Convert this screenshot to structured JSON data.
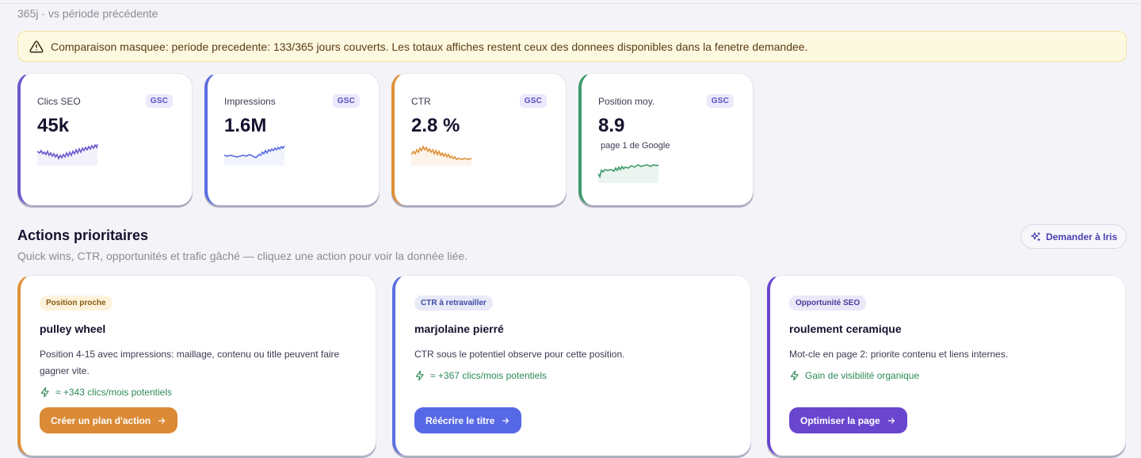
{
  "header": {
    "period": "365j · vs période précédente"
  },
  "alert": {
    "icon": "warning-triangle-icon",
    "text": "Comparaison masquee: periode precedente: 133/365 jours couverts. Les totaux affiches restent ceux des donnees disponibles dans la fenetre demandee."
  },
  "kpis": [
    {
      "label": "Clics SEO",
      "badge": "GSC",
      "value": "45k",
      "color": "#6a5acd"
    },
    {
      "label": "Impressions",
      "badge": "GSC",
      "value": "1.6M",
      "color": "#5b6ee1"
    },
    {
      "label": "CTR",
      "badge": "GSC",
      "value": "2.8 %",
      "color": "#e0913a"
    },
    {
      "label": "Position moy.",
      "badge": "GSC",
      "value": "8.9",
      "sub": "page 1 de Google",
      "color": "#3f9b6b"
    }
  ],
  "actions_section": {
    "title": "Actions prioritaires",
    "subtitle": "Quick wins, CTR, opportunités et trafic gâché — cliquez une action pour voir la donnée liée.",
    "iris_button": "Demander à Iris"
  },
  "actions": [
    {
      "tag": "Position proche",
      "title": "pulley wheel",
      "description": "Position 4-15 avec impressions: maillage, contenu ou title peuvent faire gagner vite.",
      "gain": "≈ +343 clics/mois potentiels",
      "cta": "Créer un plan d'action",
      "color": "#e0913a"
    },
    {
      "tag": "CTR à retravailler",
      "title": "marjolaine pierré",
      "description": "CTR sous le potentiel observe pour cette position.",
      "gain": "≈ +367 clics/mois potentiels",
      "cta": "Réécrire le titre",
      "color": "#5b6ee1"
    },
    {
      "tag": "Opportunité SEO",
      "title": "roulement ceramique",
      "description": "Mot-cle en page 2: priorite contenu et liens internes.",
      "gain": "Gain de visibilité organique",
      "cta": "Optimiser la page",
      "color": "#6a46cf"
    }
  ]
}
